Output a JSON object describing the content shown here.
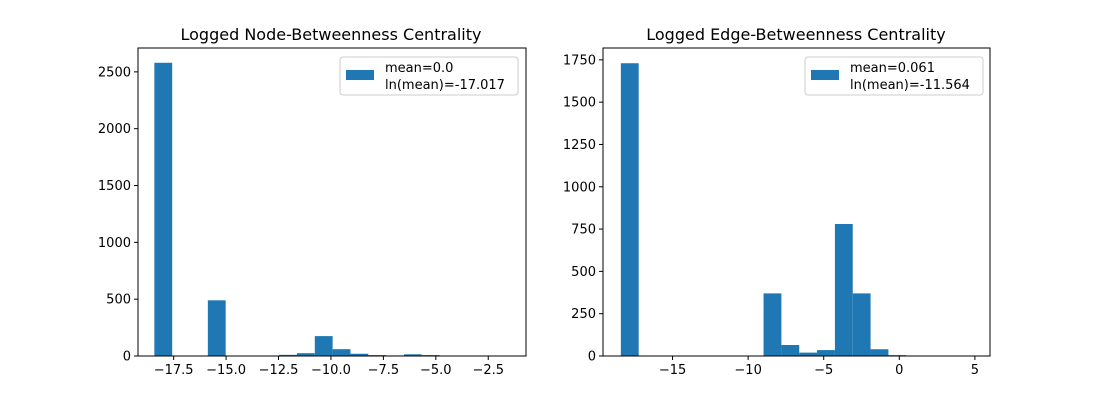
{
  "figure": {
    "background": "#ffffff",
    "bar_color": "#1f77b4"
  },
  "chart_data": [
    {
      "type": "bar",
      "title": "Logged Node-Betweenness Centrality",
      "xlabel": "",
      "ylabel": "",
      "xlim": [
        -19.2,
        -0.7
      ],
      "ylim": [
        0,
        2710
      ],
      "xticks": [
        -17.5,
        -15.0,
        -12.5,
        -10.0,
        -7.5,
        -5.0,
        -2.5
      ],
      "xtick_labels": [
        "−17.5",
        "−15.0",
        "−12.5",
        "−10.0",
        "−7.5",
        "−5.0",
        "−2.5"
      ],
      "yticks": [
        0,
        500,
        1000,
        1500,
        2000,
        2500
      ],
      "ytick_labels": [
        "0",
        "500",
        "1000",
        "1500",
        "2000",
        "2500"
      ],
      "grid": false,
      "legend_position": "top-right",
      "legend": [
        "mean=0.0",
        "ln(mean)=-17.017"
      ],
      "bin_width": 0.85,
      "bins": [
        {
          "x0": -18.42,
          "count": 2580
        },
        {
          "x0": -15.87,
          "count": 490
        },
        {
          "x0": -12.47,
          "count": 10
        },
        {
          "x0": -11.62,
          "count": 25
        },
        {
          "x0": -10.77,
          "count": 175
        },
        {
          "x0": -9.92,
          "count": 60
        },
        {
          "x0": -9.07,
          "count": 20
        },
        {
          "x0": -8.22,
          "count": 8
        },
        {
          "x0": -7.37,
          "count": 5
        },
        {
          "x0": -6.52,
          "count": 15
        },
        {
          "x0": -5.67,
          "count": 8
        },
        {
          "x0": -4.82,
          "count": 3
        }
      ]
    },
    {
      "type": "bar",
      "title": "Logged Edge-Betweenness Centrality",
      "xlabel": "",
      "ylabel": "",
      "xlim": [
        -19.6,
        6.0
      ],
      "ylim": [
        0,
        1820
      ],
      "xticks": [
        -15,
        -10,
        -5,
        0,
        5
      ],
      "xtick_labels": [
        "−15",
        "−10",
        "−5",
        "0",
        "5"
      ],
      "yticks": [
        0,
        250,
        500,
        750,
        1000,
        1250,
        1500,
        1750
      ],
      "ytick_labels": [
        "0",
        "250",
        "500",
        "750",
        "1000",
        "1250",
        "1500",
        "1750"
      ],
      "grid": false,
      "legend_position": "top-right",
      "legend": [
        "mean=0.061",
        "ln(mean)=-11.564"
      ],
      "bin_width": 1.18,
      "bins": [
        {
          "x0": -18.42,
          "count": 1730
        },
        {
          "x0": -8.98,
          "count": 370
        },
        {
          "x0": -7.8,
          "count": 65
        },
        {
          "x0": -6.62,
          "count": 20
        },
        {
          "x0": -5.44,
          "count": 35
        },
        {
          "x0": -4.26,
          "count": 780
        },
        {
          "x0": -3.08,
          "count": 370
        },
        {
          "x0": -1.9,
          "count": 40
        },
        {
          "x0": -0.72,
          "count": 5
        }
      ]
    }
  ]
}
